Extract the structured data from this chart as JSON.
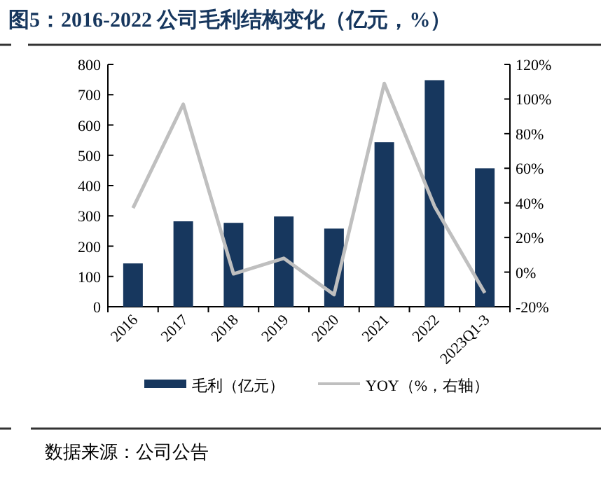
{
  "chart_data": {
    "type": "bar",
    "title": "图5：2016-2022 公司毛利结构变化（亿元，%）",
    "categories": [
      "2016",
      "2017",
      "2018",
      "2019",
      "2020",
      "2021",
      "2022",
      "2023Q1-3"
    ],
    "series": [
      {
        "name": "毛利（亿元）",
        "color": "#17375e",
        "values": [
          143,
          282,
          277,
          298,
          258,
          543,
          748,
          457
        ]
      },
      {
        "name": "YOY（%，右轴）",
        "type": "line",
        "axis": "y2",
        "color": "#bfbfbf",
        "values": [
          37,
          97,
          -1,
          8,
          -13,
          109,
          38,
          -12
        ]
      }
    ],
    "ylim": [
      0,
      800
    ],
    "yticks": [
      0,
      100,
      200,
      300,
      400,
      500,
      600,
      700,
      800
    ],
    "y2lim": [
      -20,
      120
    ],
    "y2ticks": [
      {
        "value": -20,
        "label": "-20%"
      },
      {
        "value": 0,
        "label": "0%"
      },
      {
        "value": 20,
        "label": "20%"
      },
      {
        "value": 40,
        "label": "40%"
      },
      {
        "value": 60,
        "label": "60%"
      },
      {
        "value": 80,
        "label": "80%"
      },
      {
        "value": 100,
        "label": "100%"
      },
      {
        "value": 120,
        "label": "120%"
      }
    ],
    "grid": false,
    "legend": "bottom",
    "annotations": [
      "数据来源：公司公告"
    ]
  }
}
